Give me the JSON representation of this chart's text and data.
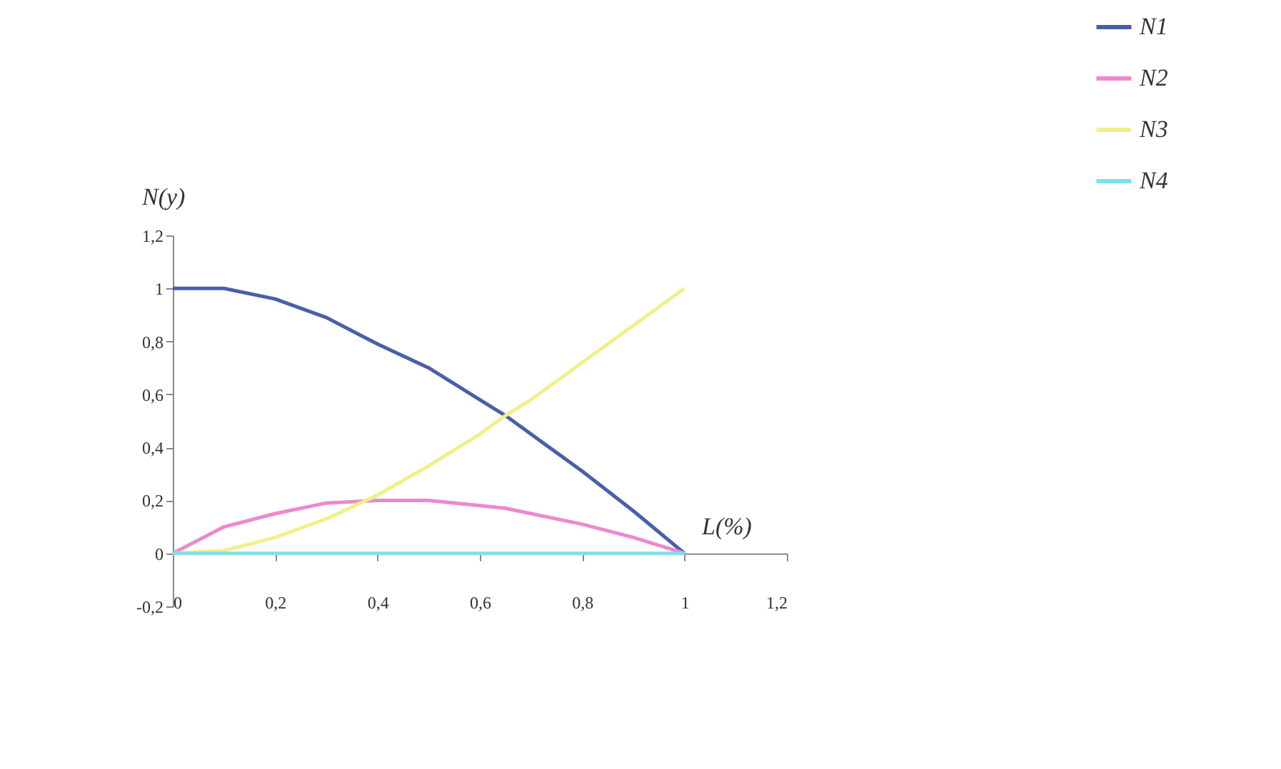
{
  "chart_data": {
    "type": "line",
    "xlabel": "L(%)",
    "ylabel": "N(y)",
    "x": [
      0,
      0.1,
      0.2,
      0.3,
      0.4,
      0.5,
      0.6,
      0.65,
      0.7,
      0.8,
      0.9,
      1
    ],
    "series": [
      {
        "name": "N1",
        "color": "#4a5fa8",
        "values": [
          1.0,
          1.0,
          0.96,
          0.89,
          0.79,
          0.7,
          0.58,
          0.52,
          0.45,
          0.31,
          0.16,
          0
        ]
      },
      {
        "name": "N2",
        "color": "#ee88cc",
        "values": [
          0,
          0.1,
          0.15,
          0.19,
          0.2,
          0.2,
          0.18,
          0.17,
          0.15,
          0.11,
          0.06,
          0
        ]
      },
      {
        "name": "N3",
        "color": "#f0f08a",
        "values": [
          0,
          0.01,
          0.06,
          0.13,
          0.22,
          0.33,
          0.45,
          0.52,
          0.58,
          0.72,
          0.86,
          1.0
        ]
      },
      {
        "name": "N4",
        "color": "#7fe0e8",
        "values": [
          0,
          0,
          0,
          0,
          0,
          0,
          0,
          0,
          0,
          0,
          0,
          0
        ]
      }
    ],
    "xlim": [
      0,
      1.2
    ],
    "xticks": [
      0,
      {
        "value": 0.2,
        "label": "0,2"
      },
      {
        "value": 0.4,
        "label": "0,4"
      },
      {
        "value": 0.6,
        "label": "0,6"
      },
      {
        "value": 0.8,
        "label": "0,8"
      },
      1,
      {
        "value": 1.2,
        "label": "1,2"
      }
    ],
    "ylim": [
      -0.2,
      1.2
    ],
    "yticks": [
      {
        "value": -0.2,
        "label": "-0,2"
      },
      0,
      {
        "value": 0.2,
        "label": "0,2"
      },
      {
        "value": 0.4,
        "label": "0,4"
      },
      {
        "value": 0.6,
        "label": "0,6"
      },
      {
        "value": 0.8,
        "label": "0,8"
      },
      1,
      {
        "value": 1.2,
        "label": "1,2"
      }
    ],
    "grid": false,
    "legend": "top right",
    "marker": "none",
    "line_style": "solid"
  }
}
